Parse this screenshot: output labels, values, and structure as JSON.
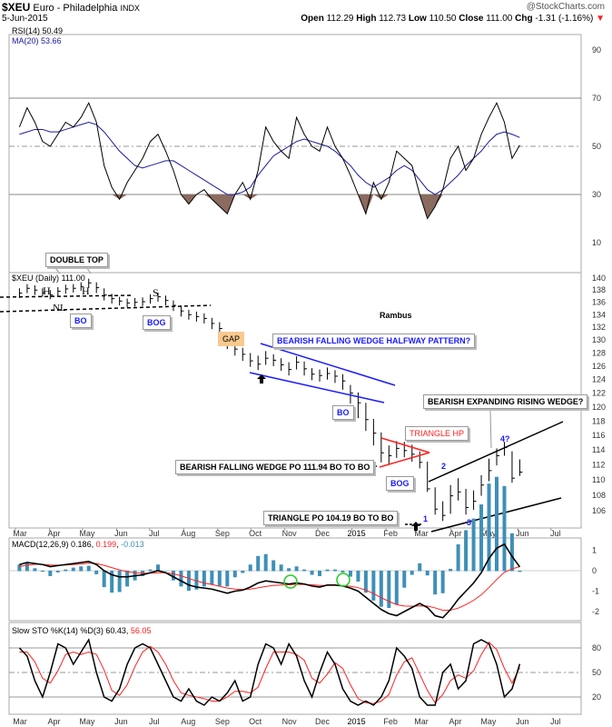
{
  "header": {
    "symbol": "$XEU",
    "name": "Euro - Philadelphia",
    "exchange": "INDX",
    "date": "5-Jun-2015",
    "copyright": "@StockCharts.com",
    "open_label": "Open",
    "open": "112.29",
    "high_label": "High",
    "high": "112.73",
    "low_label": "Low",
    "low": "110.50",
    "close_label": "Close",
    "close": "111.00",
    "chg_label": "Chg",
    "chg": "-1.31 (-1.16%)",
    "chg_arrow": "▼"
  },
  "colors": {
    "price": "#000000",
    "rsi_ma": "#1a1aa0",
    "rsi_fill": "#8b6a60",
    "macd": "#000000",
    "signal": "#ff2020",
    "histogram": "#3f8fb8",
    "sto_d": "#ff2020",
    "annotation_blue": "#1a1aff",
    "annotation_red": "#ff2020",
    "circle": "#22cc22",
    "gap": "#f9c98f"
  },
  "chart_data": [
    {
      "type": "line",
      "panel": "RSI",
      "legend": [
        "RSI(14) 50.49",
        "MA(20) 53.66"
      ],
      "ylim": [
        0,
        100
      ],
      "yticks": [
        10,
        30,
        50,
        70,
        90
      ],
      "reference_lines": [
        30,
        50,
        70
      ],
      "series": [
        {
          "name": "RSI(14)",
          "values": [
            58,
            66,
            60,
            52,
            50,
            55,
            60,
            58,
            62,
            68,
            60,
            42,
            33,
            28,
            35,
            40,
            45,
            52,
            55,
            48,
            40,
            30,
            26,
            30,
            32,
            28,
            25,
            22,
            30,
            35,
            28,
            40,
            58,
            52,
            48,
            45,
            62,
            55,
            50,
            48,
            58,
            50,
            45,
            38,
            30,
            22,
            35,
            28,
            35,
            48,
            45,
            42,
            30,
            20,
            25,
            32,
            45,
            50,
            40,
            45,
            55,
            62,
            68,
            60,
            45,
            50.49
          ]
        },
        {
          "name": "MA(20)",
          "values": [
            55,
            56,
            57,
            57,
            56,
            56,
            57,
            58,
            59,
            60,
            59,
            56,
            52,
            48,
            45,
            42,
            41,
            42,
            43,
            44,
            44,
            42,
            40,
            38,
            36,
            34,
            32,
            30,
            30,
            31,
            33,
            38,
            42,
            46,
            48,
            50,
            52,
            53,
            52,
            51,
            50,
            48,
            45,
            42,
            38,
            35,
            33,
            35,
            37,
            40,
            42,
            40,
            36,
            32,
            30,
            32,
            35,
            38,
            42,
            45,
            48,
            52,
            55,
            56,
            55,
            53.66
          ]
        }
      ]
    },
    {
      "type": "bar",
      "panel": "Price",
      "legend": "$XEU (Daily) 111.00",
      "scale": "log",
      "ylim": [
        104,
        141
      ],
      "yticks": [
        106,
        108,
        110,
        112,
        114,
        116,
        118,
        120,
        122,
        124,
        126,
        128,
        130,
        132,
        134,
        136,
        138,
        140
      ],
      "dates": [
        "2014-03-03",
        "2014-03-10",
        "2014-03-17",
        "2014-03-24",
        "2014-03-31",
        "2014-04-07",
        "2014-04-14",
        "2014-04-21",
        "2014-04-28",
        "2014-05-05",
        "2014-05-12",
        "2014-05-19",
        "2014-05-26",
        "2014-06-02",
        "2014-06-09",
        "2014-06-16",
        "2014-06-23",
        "2014-06-30",
        "2014-07-07",
        "2014-07-14",
        "2014-07-21",
        "2014-07-28",
        "2014-08-04",
        "2014-08-11",
        "2014-08-18",
        "2014-08-25",
        "2014-09-01",
        "2014-09-08",
        "2014-09-15",
        "2014-09-22",
        "2014-09-29",
        "2014-10-06",
        "2014-10-13",
        "2014-10-20",
        "2014-10-27",
        "2014-11-03",
        "2014-11-10",
        "2014-11-17",
        "2014-11-24",
        "2014-12-01",
        "2014-12-08",
        "2014-12-15",
        "2014-12-22",
        "2014-12-29",
        "2015-01-05",
        "2015-01-12",
        "2015-01-19",
        "2015-01-26",
        "2015-02-02",
        "2015-02-09",
        "2015-02-16",
        "2015-02-23",
        "2015-03-02",
        "2015-03-09",
        "2015-03-16",
        "2015-03-23",
        "2015-03-30",
        "2015-04-06",
        "2015-04-13",
        "2015-04-20",
        "2015-04-27",
        "2015-05-04",
        "2015-05-11",
        "2015-05-18",
        "2015-05-25",
        "2015-06-01"
      ],
      "close": [
        137.5,
        138.3,
        138,
        137.6,
        137.2,
        137.8,
        138.2,
        138.3,
        138.6,
        139.2,
        138.4,
        137.2,
        136.6,
        136.2,
        135.9,
        136,
        136.1,
        136.6,
        136.9,
        136.3,
        135.5,
        134.6,
        134,
        133.7,
        133.4,
        132.6,
        131.8,
        129.8,
        128.6,
        127.8,
        126.8,
        126.3,
        127.2,
        126.9,
        126.2,
        125.5,
        126.6,
        125.6,
        124.8,
        124.6,
        124.9,
        124.5,
        123.8,
        122,
        120.6,
        118.2,
        116.3,
        113.6,
        113.2,
        114.2,
        113.9,
        113.4,
        112.3,
        108.8,
        106.2,
        105.4,
        107.9,
        108.4,
        106.4,
        107.2,
        109.3,
        111.2,
        113.2,
        114.3,
        110.2,
        111.0
      ],
      "high": [
        138.3,
        139,
        138.8,
        138.3,
        138,
        138.5,
        138.9,
        139,
        139.3,
        139.9,
        139.3,
        138.3,
        137.4,
        136.9,
        136.6,
        136.7,
        136.8,
        137.3,
        137.6,
        137.1,
        136.3,
        135.5,
        134.8,
        134.5,
        134.2,
        133.5,
        132.8,
        131.3,
        129.6,
        128.8,
        128,
        127.6,
        128.3,
        127.8,
        127.2,
        126.6,
        127.5,
        126.7,
        125.7,
        125.5,
        125.8,
        125.4,
        124.8,
        123.2,
        122.1,
        120.6,
        118.3,
        116.4,
        114.6,
        115.2,
        115.1,
        114.7,
        113.8,
        112.4,
        109,
        107.2,
        109.3,
        110.2,
        108.8,
        108.6,
        110.6,
        112.8,
        114.2,
        115.1,
        113.8,
        112.7
      ],
      "low": [
        136.7,
        137.5,
        137.2,
        136.9,
        136.5,
        137,
        137.4,
        137.6,
        137.9,
        138.4,
        137.5,
        136.3,
        135.8,
        135.5,
        135.2,
        135.3,
        135.4,
        135.8,
        136.1,
        135.5,
        134.6,
        133.7,
        133.2,
        132.9,
        132.6,
        131.7,
        130.1,
        128.6,
        127.6,
        126.8,
        125.9,
        125.4,
        126.2,
        126,
        125.3,
        124.6,
        125.5,
        124.6,
        123.9,
        123.7,
        124,
        123.5,
        122.5,
        120.5,
        118.4,
        116.6,
        114.6,
        112.3,
        112.1,
        112.9,
        113,
        112.4,
        111.5,
        108.4,
        105.5,
        104.7,
        105.6,
        107.3,
        105.5,
        106.1,
        107.9,
        109.8,
        111.9,
        113.2,
        109.6,
        110.5
      ]
    },
    {
      "type": "line",
      "panel": "MACD",
      "legend": {
        "label": "MACD(12,26,9)",
        "macd": "0.186",
        "signal": "0.199",
        "hist": "-0.013"
      },
      "ylim": [
        -2.5,
        1.6
      ],
      "yticks": [
        1,
        0,
        -1,
        -2
      ],
      "series": [
        {
          "name": "MACD",
          "values": [
            0.3,
            0.4,
            0.35,
            0.3,
            0.2,
            0.25,
            0.3,
            0.35,
            0.4,
            0.45,
            0.3,
            0.0,
            -0.2,
            -0.3,
            -0.3,
            -0.25,
            -0.2,
            -0.1,
            0.0,
            -0.1,
            -0.3,
            -0.5,
            -0.7,
            -0.8,
            -0.85,
            -0.9,
            -1.0,
            -1.1,
            -1.0,
            -0.95,
            -0.8,
            -0.6,
            -0.5,
            -0.55,
            -0.6,
            -0.65,
            -0.6,
            -0.65,
            -0.75,
            -0.8,
            -0.7,
            -0.7,
            -0.75,
            -0.85,
            -1.0,
            -1.3,
            -1.6,
            -1.9,
            -2.1,
            -2.2,
            -2.0,
            -1.8,
            -1.6,
            -1.8,
            -2.2,
            -2.3,
            -1.9,
            -1.4,
            -1.0,
            -0.6,
            -0.1,
            0.6,
            1.1,
            1.3,
            0.7,
            0.186
          ]
        },
        {
          "name": "Signal",
          "values": [
            0.2,
            0.28,
            0.31,
            0.31,
            0.28,
            0.27,
            0.28,
            0.3,
            0.33,
            0.37,
            0.35,
            0.26,
            0.15,
            0.04,
            -0.05,
            -0.1,
            -0.12,
            -0.12,
            -0.1,
            -0.1,
            -0.15,
            -0.25,
            -0.38,
            -0.5,
            -0.6,
            -0.68,
            -0.76,
            -0.85,
            -0.9,
            -0.92,
            -0.9,
            -0.84,
            -0.77,
            -0.72,
            -0.7,
            -0.69,
            -0.67,
            -0.67,
            -0.69,
            -0.72,
            -0.72,
            -0.72,
            -0.73,
            -0.76,
            -0.83,
            -0.95,
            -1.12,
            -1.32,
            -1.5,
            -1.66,
            -1.73,
            -1.74,
            -1.72,
            -1.73,
            -1.82,
            -1.94,
            -1.93,
            -1.83,
            -1.66,
            -1.45,
            -1.18,
            -0.82,
            -0.43,
            -0.08,
            0.09,
            0.199
          ]
        }
      ]
    },
    {
      "type": "line",
      "panel": "Slow STO",
      "legend": {
        "label": "Slow STO %K(14) %D(3)",
        "k": "60.43",
        "d": "56.05"
      },
      "ylim": [
        0,
        100
      ],
      "yticks": [
        80,
        50,
        20
      ],
      "reference_lines": [
        20,
        50,
        80
      ],
      "series": [
        {
          "name": "%K",
          "values": [
            80,
            70,
            40,
            20,
            50,
            85,
            80,
            60,
            75,
            90,
            50,
            20,
            15,
            30,
            60,
            80,
            85,
            80,
            60,
            40,
            20,
            15,
            30,
            15,
            10,
            20,
            15,
            25,
            40,
            15,
            20,
            60,
            85,
            80,
            60,
            85,
            70,
            40,
            20,
            50,
            75,
            60,
            30,
            15,
            10,
            15,
            10,
            20,
            40,
            80,
            70,
            55,
            20,
            10,
            10,
            50,
            60,
            30,
            40,
            85,
            90,
            85,
            60,
            20,
            30,
            60.43
          ]
        },
        {
          "name": "%D",
          "values": [
            75,
            75,
            63,
            43,
            37,
            52,
            72,
            75,
            72,
            75,
            72,
            53,
            28,
            22,
            35,
            57,
            75,
            82,
            75,
            60,
            40,
            25,
            22,
            20,
            18,
            15,
            15,
            20,
            27,
            27,
            25,
            32,
            55,
            75,
            75,
            75,
            72,
            65,
            43,
            37,
            48,
            62,
            55,
            35,
            18,
            13,
            12,
            15,
            23,
            47,
            63,
            68,
            48,
            28,
            13,
            23,
            40,
            47,
            43,
            52,
            72,
            87,
            78,
            55,
            37,
            56.05
          ]
        }
      ]
    }
  ],
  "x_axis": {
    "labels": [
      "Mar",
      "Apr",
      "May",
      "Jun",
      "Jul",
      "Aug",
      "Sep",
      "Oct",
      "Nov",
      "Dec",
      "2015",
      "Feb",
      "Mar",
      "Apr",
      "May",
      "Jun",
      "Jul"
    ],
    "label_dates": [
      "2014-03-01",
      "2014-04-01",
      "2014-05-01",
      "2014-06-01",
      "2014-07-01",
      "2014-08-01",
      "2014-09-01",
      "2014-10-01",
      "2014-11-01",
      "2014-12-01",
      "2015-01-01",
      "2015-02-01",
      "2015-03-01",
      "2015-04-01",
      "2015-05-01",
      "2015-06-01",
      "2015-07-01"
    ]
  },
  "annotations": {
    "double_top": "DOUBLE TOP",
    "h1": "H",
    "h2": "H",
    "s": "S",
    "nl": "NL",
    "bo1": "BO",
    "bog1": "BOG",
    "gap": "GAP",
    "author": "Rambus",
    "wedge_halfway": "BEARISH FALLING WEDGE HALFWAY PATTERN?",
    "bo2": "BO",
    "triangle_hp": "TRIANGLE HP",
    "wedge_po": "BEARISH FALLING WEDGE PO 111.94 BO TO BO",
    "bog2": "BOG",
    "expanding_wedge": "BEARISH EXPANDING RISING WEDGE?",
    "n1": "1",
    "n2": "2",
    "n3": "3",
    "n4": "4?",
    "triangle_po": "TRIANGLE PO 104.19 BO TO BO"
  }
}
